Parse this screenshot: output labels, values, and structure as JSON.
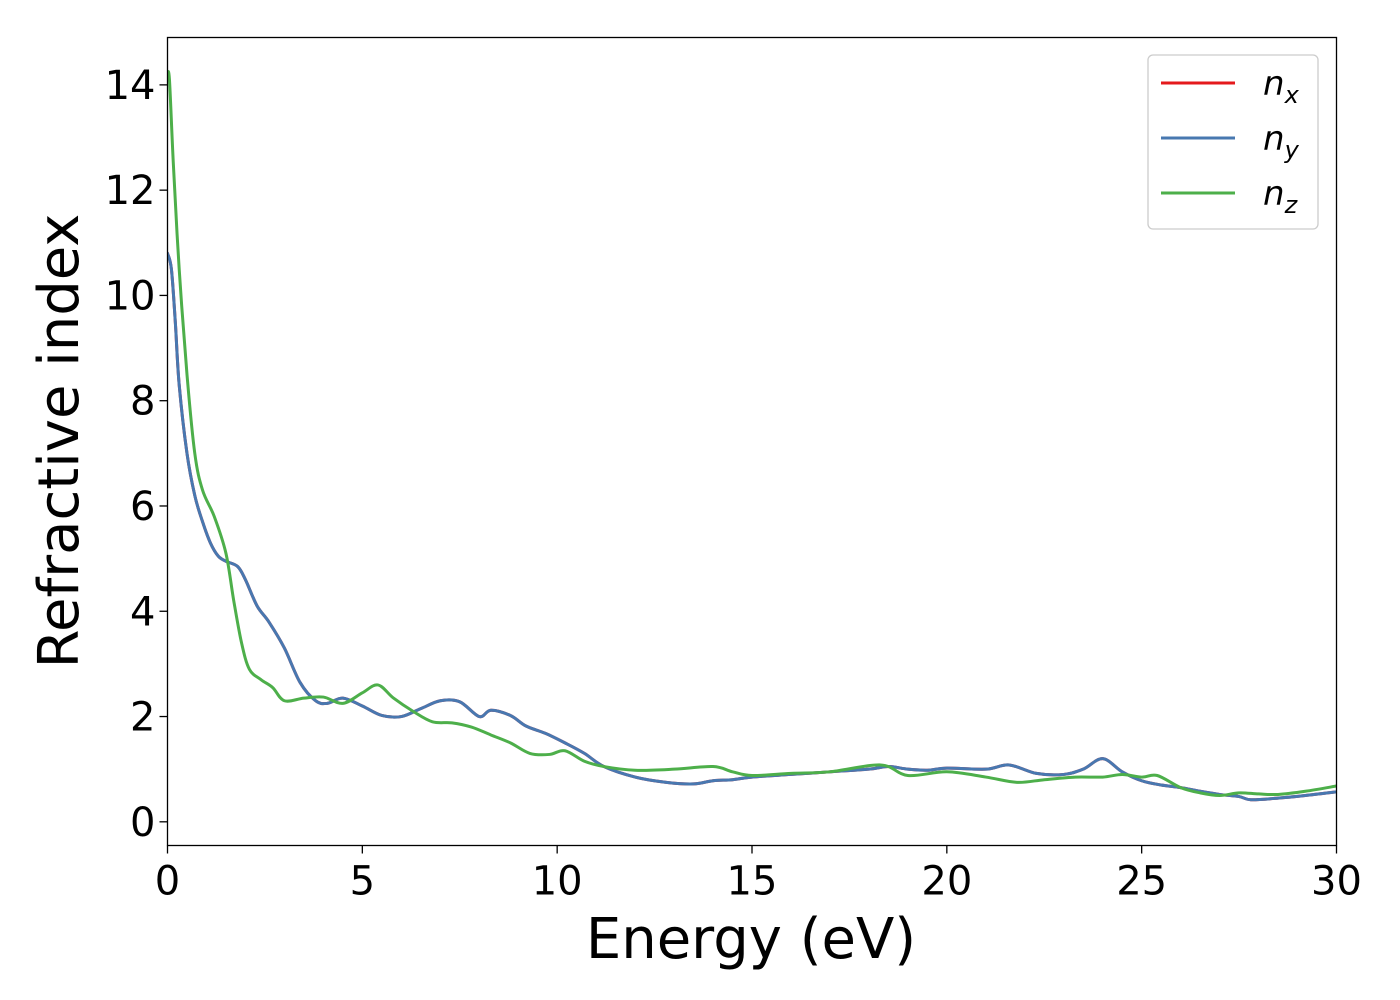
{
  "chart_data": {
    "type": "line",
    "title": "",
    "xlabel": "Energy (eV)",
    "ylabel": "Refractive index",
    "xlim": [
      0,
      30
    ],
    "ylim": [
      -0.45,
      14.9
    ],
    "xticks": [
      0,
      5,
      10,
      15,
      20,
      25,
      30
    ],
    "yticks": [
      0,
      2,
      4,
      6,
      8,
      10,
      12,
      14
    ],
    "grid": false,
    "legend_position": "top-right",
    "series": [
      {
        "name": "n_x",
        "label_main": "n",
        "label_sub": "x",
        "color": "#e41a1c",
        "x": [
          0,
          0.1,
          0.2,
          0.3,
          0.5,
          0.7,
          0.9,
          1.1,
          1.3,
          1.5,
          1.8,
          2.0,
          2.3,
          2.6,
          3.0,
          3.4,
          3.8,
          4.1,
          4.5,
          5.0,
          5.5,
          6.0,
          6.5,
          7.0,
          7.5,
          8.0,
          8.3,
          8.8,
          9.2,
          9.7,
          10.2,
          10.7,
          11.2,
          12.0,
          12.8,
          13.5,
          14.0,
          14.5,
          15.0,
          16.0,
          17.0,
          18.0,
          18.5,
          19.0,
          19.5,
          20.0,
          21.0,
          21.6,
          22.3,
          23.0,
          23.5,
          24.0,
          24.5,
          25.0,
          25.5,
          26.0,
          26.5,
          27.0,
          27.5,
          27.8,
          28.5,
          29.2,
          30.0
        ],
        "y": [
          10.8,
          10.5,
          9.5,
          8.3,
          7.0,
          6.2,
          5.7,
          5.3,
          5.05,
          4.95,
          4.85,
          4.6,
          4.1,
          3.8,
          3.3,
          2.65,
          2.3,
          2.25,
          2.35,
          2.2,
          2.02,
          2.0,
          2.15,
          2.3,
          2.28,
          2.0,
          2.12,
          2.02,
          1.82,
          1.68,
          1.5,
          1.3,
          1.05,
          0.85,
          0.75,
          0.72,
          0.78,
          0.8,
          0.85,
          0.9,
          0.95,
          1.0,
          1.05,
          1.0,
          0.98,
          1.02,
          1.0,
          1.08,
          0.92,
          0.9,
          1.0,
          1.2,
          0.95,
          0.78,
          0.7,
          0.65,
          0.58,
          0.52,
          0.48,
          0.42,
          0.45,
          0.5,
          0.57
        ]
      },
      {
        "name": "n_y",
        "label_main": "n",
        "label_sub": "y",
        "color": "#4878b0",
        "x": [
          0,
          0.1,
          0.2,
          0.3,
          0.5,
          0.7,
          0.9,
          1.1,
          1.3,
          1.5,
          1.8,
          2.0,
          2.3,
          2.6,
          3.0,
          3.4,
          3.8,
          4.1,
          4.5,
          5.0,
          5.5,
          6.0,
          6.5,
          7.0,
          7.5,
          8.0,
          8.3,
          8.8,
          9.2,
          9.7,
          10.2,
          10.7,
          11.2,
          12.0,
          12.8,
          13.5,
          14.0,
          14.5,
          15.0,
          16.0,
          17.0,
          18.0,
          18.5,
          19.0,
          19.5,
          20.0,
          21.0,
          21.6,
          22.3,
          23.0,
          23.5,
          24.0,
          24.5,
          25.0,
          25.5,
          26.0,
          26.5,
          27.0,
          27.5,
          27.8,
          28.5,
          29.2,
          30.0
        ],
        "y": [
          10.8,
          10.5,
          9.5,
          8.3,
          7.0,
          6.2,
          5.7,
          5.3,
          5.05,
          4.95,
          4.85,
          4.6,
          4.1,
          3.8,
          3.3,
          2.65,
          2.3,
          2.25,
          2.35,
          2.2,
          2.02,
          2.0,
          2.15,
          2.3,
          2.28,
          2.0,
          2.12,
          2.02,
          1.82,
          1.68,
          1.5,
          1.3,
          1.05,
          0.85,
          0.75,
          0.72,
          0.78,
          0.8,
          0.85,
          0.9,
          0.95,
          1.0,
          1.05,
          1.0,
          0.98,
          1.02,
          1.0,
          1.08,
          0.92,
          0.9,
          1.0,
          1.2,
          0.95,
          0.78,
          0.7,
          0.65,
          0.58,
          0.52,
          0.48,
          0.42,
          0.45,
          0.5,
          0.57
        ]
      },
      {
        "name": "n_z",
        "label_main": "n",
        "label_sub": "z",
        "color": "#4daf4a",
        "x": [
          0,
          0.05,
          0.15,
          0.3,
          0.5,
          0.7,
          0.9,
          1.2,
          1.5,
          1.7,
          1.9,
          2.1,
          2.4,
          2.7,
          3.0,
          3.5,
          4.0,
          4.5,
          5.0,
          5.4,
          5.8,
          6.3,
          6.8,
          7.3,
          7.8,
          8.3,
          8.8,
          9.3,
          9.8,
          10.2,
          10.7,
          11.2,
          12.0,
          13.0,
          14.0,
          14.5,
          15.0,
          16.0,
          17.0,
          18.3,
          19.0,
          20.0,
          21.0,
          21.8,
          22.5,
          23.3,
          24.0,
          24.5,
          25.0,
          25.4,
          26.0,
          26.5,
          27.0,
          27.5,
          28.0,
          28.5,
          29.2,
          30.0
        ],
        "y": [
          14.2,
          14.1,
          12.5,
          10.5,
          8.5,
          7.0,
          6.3,
          5.8,
          5.1,
          4.2,
          3.4,
          2.9,
          2.7,
          2.55,
          2.3,
          2.35,
          2.37,
          2.25,
          2.45,
          2.6,
          2.35,
          2.1,
          1.9,
          1.88,
          1.8,
          1.65,
          1.5,
          1.3,
          1.28,
          1.35,
          1.15,
          1.05,
          0.98,
          1.0,
          1.05,
          0.95,
          0.88,
          0.92,
          0.95,
          1.08,
          0.88,
          0.95,
          0.85,
          0.75,
          0.8,
          0.85,
          0.85,
          0.9,
          0.85,
          0.88,
          0.65,
          0.55,
          0.5,
          0.55,
          0.53,
          0.52,
          0.58,
          0.68
        ]
      }
    ]
  }
}
